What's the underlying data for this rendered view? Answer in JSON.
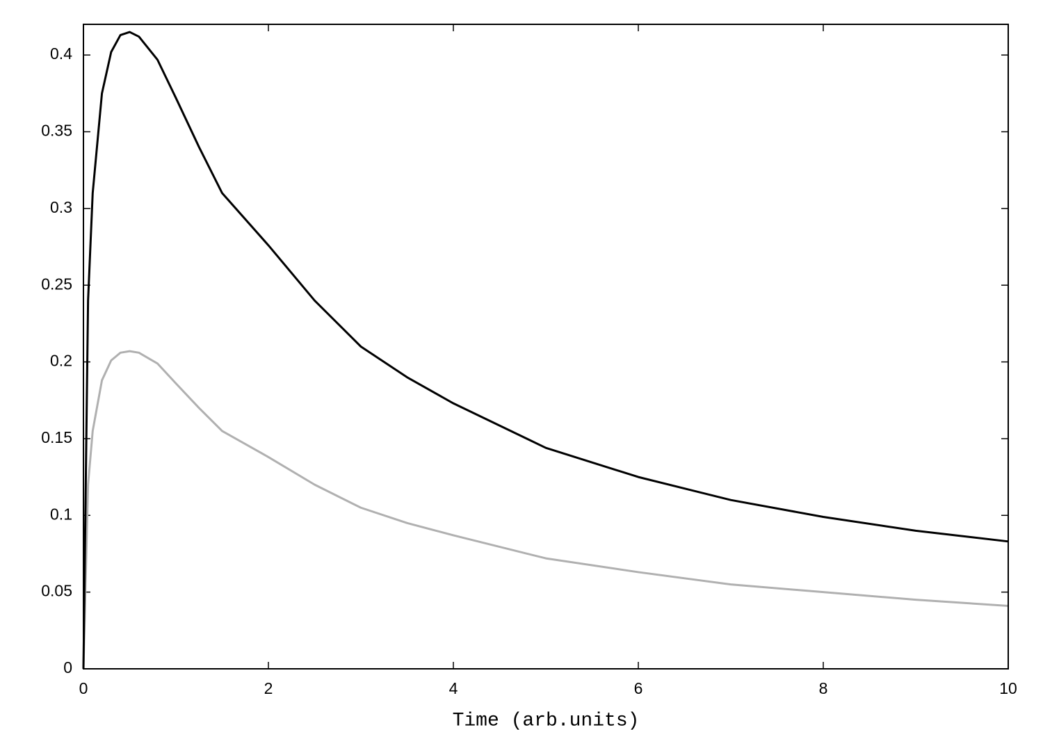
{
  "chart_data": {
    "type": "line",
    "x_label": "Time (arb.units)",
    "x": [
      0,
      0.05,
      0.1,
      0.2,
      0.3,
      0.4,
      0.5,
      0.6,
      0.8,
      1,
      1.25,
      1.5,
      2,
      2.5,
      3,
      3.5,
      4,
      5,
      6,
      7,
      8,
      9,
      10
    ],
    "series": [
      {
        "color": "#000000",
        "values": [
          0,
          0.24,
          0.31,
          0.375,
          0.402,
          0.413,
          0.415,
          0.412,
          0.397,
          0.372,
          0.34,
          0.31,
          0.276,
          0.24,
          0.21,
          0.19,
          0.173,
          0.144,
          0.125,
          0.11,
          0.099,
          0.09,
          0.083
        ]
      },
      {
        "color": "#b0b0b0",
        "values": [
          0,
          0.12,
          0.155,
          0.188,
          0.201,
          0.206,
          0.207,
          0.206,
          0.199,
          0.186,
          0.17,
          0.155,
          0.138,
          0.12,
          0.105,
          0.095,
          0.087,
          0.072,
          0.063,
          0.055,
          0.05,
          0.045,
          0.041
        ]
      }
    ],
    "xlim": [
      0,
      10
    ],
    "xticks": [
      0,
      2,
      4,
      6,
      8,
      10
    ],
    "ylim": [
      0,
      0.42
    ],
    "yticks": [
      0,
      0.05,
      0.1,
      0.15,
      0.2,
      0.25,
      0.3,
      0.35,
      0.4
    ],
    "grid": false,
    "mirror_ticks": true
  }
}
